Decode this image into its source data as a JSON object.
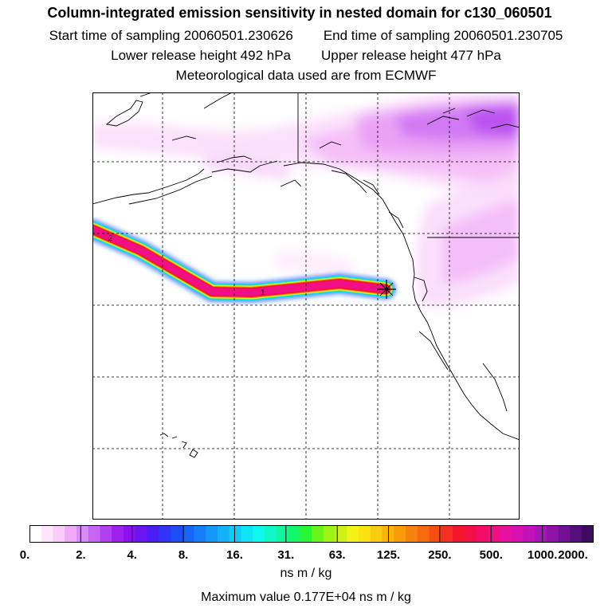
{
  "header": {
    "title": "Column-integrated emission sensitivity in nested domain for c130_060501",
    "start_time": "Start time of sampling 20060501.230626",
    "end_time": "End time of sampling 20060501.230705",
    "lower_height": "Lower release height  492 hPa",
    "upper_height": "Upper release height  477 hPa",
    "met_data": "Meteorological data used are from ECMWF"
  },
  "map": {
    "track_labels": [
      "2",
      "1"
    ],
    "release_marker": "release-point-star"
  },
  "colorbar": {
    "tick_labels": [
      "0.",
      "2.",
      "4.",
      "8.",
      "16.",
      "31.",
      "63.",
      "125.",
      "250.",
      "500.",
      "1000.",
      "2000."
    ],
    "colors": [
      "#ffffff",
      "#fde6fe",
      "#f9ccfb",
      "#f1aaf7",
      "#d98cf5",
      "#c766f2",
      "#b23ff0",
      "#9e1fee",
      "#8b12f0",
      "#6a14f2",
      "#4a1df5",
      "#3033f8",
      "#1c4df9",
      "#1766f9",
      "#157ff9",
      "#1499f9",
      "#12b3f9",
      "#10ccf9",
      "#0fe5f7",
      "#0ff8ee",
      "#10f8c8",
      "#11f89c",
      "#12f76b",
      "#28f735",
      "#66f517",
      "#9ef515",
      "#cdf316",
      "#f4f317",
      "#fbe212",
      "#fbcb0f",
      "#fbb40c",
      "#f99b0b",
      "#f7820d",
      "#f7690f",
      "#f54d14",
      "#f32f1f",
      "#f2162c",
      "#f20f48",
      "#f20e66",
      "#f20e84",
      "#e810a0",
      "#d712b0",
      "#c213ba",
      "#a814b8",
      "#8d12a8",
      "#701191",
      "#560f78",
      "#3d0c5c"
    ],
    "units": "ns m / kg",
    "max_value": "Maximum value  0.177E+04 ns m / kg"
  }
}
